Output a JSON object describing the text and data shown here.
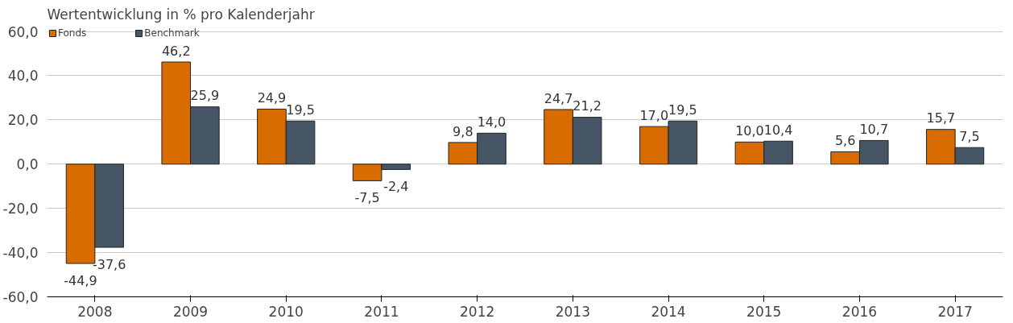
{
  "chart_data": {
    "type": "bar",
    "title": "Wertentwicklung in % pro Kalenderjahr",
    "categories": [
      "2008",
      "2009",
      "2010",
      "2011",
      "2012",
      "2013",
      "2014",
      "2015",
      "2016",
      "2017"
    ],
    "series": [
      {
        "name": "Fonds",
        "color": "#d96c00",
        "values": [
          -44.9,
          46.2,
          24.9,
          -7.5,
          9.8,
          24.7,
          17.0,
          10.0,
          5.6,
          15.7
        ],
        "value_labels": [
          "-44,9",
          "46,2",
          "24,9",
          "-7,5",
          "9,8",
          "24,7",
          "17,0",
          "10,0",
          "5,6",
          "15,7"
        ]
      },
      {
        "name": "Benchmark",
        "color": "#465667",
        "values": [
          -37.6,
          25.9,
          19.5,
          -2.4,
          14.0,
          21.2,
          19.5,
          10.4,
          10.7,
          7.5
        ],
        "value_labels": [
          "-37,6",
          "25,9",
          "19,5",
          "-2,4",
          "14,0",
          "21,2",
          "19,5",
          "10,4",
          "10,7",
          "7,5"
        ]
      }
    ],
    "ylim": [
      -60,
      60
    ],
    "yticks": [
      {
        "value": -60,
        "label": "-60,0"
      },
      {
        "value": -40,
        "label": "-40,0"
      },
      {
        "value": -20,
        "label": "-20,0"
      },
      {
        "value": 0,
        "label": "0,0"
      },
      {
        "value": 20,
        "label": "20,0"
      },
      {
        "value": 40,
        "label": "40,0"
      },
      {
        "value": 60,
        "label": "60,0"
      }
    ],
    "grid": "y",
    "legend": "top left"
  }
}
